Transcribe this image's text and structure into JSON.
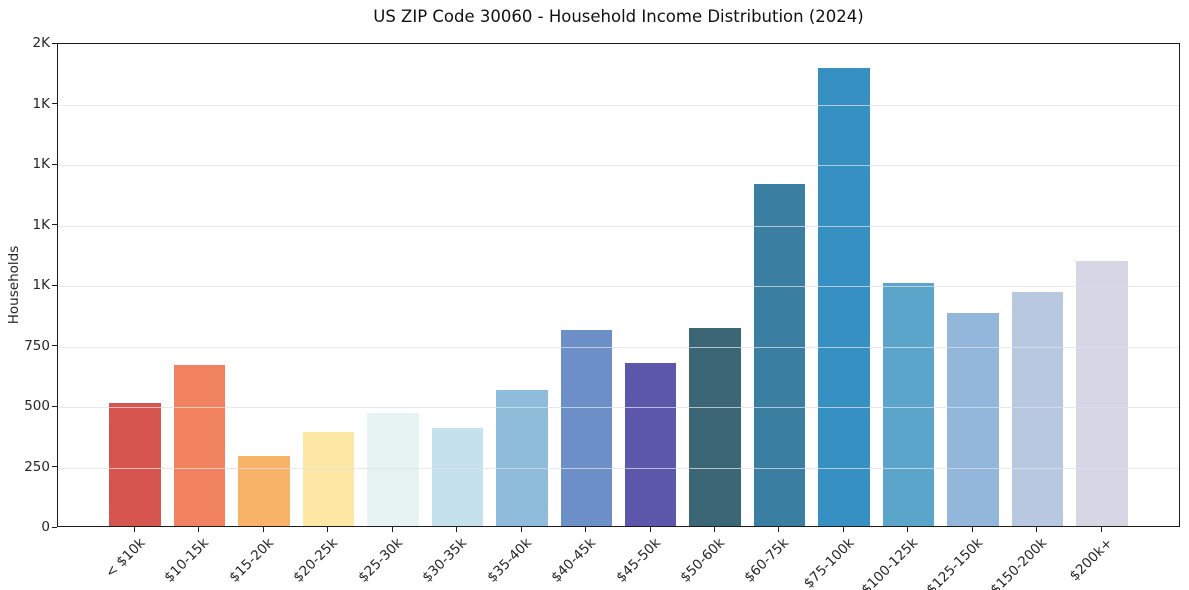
{
  "chart_data": {
    "type": "bar",
    "title": "US ZIP Code 30060 - Household Income Distribution (2024)",
    "xlabel": "",
    "ylabel": "Households",
    "categories": [
      "< $10k",
      "$10-15k",
      "$15-20k",
      "$20-25k",
      "$25-30k",
      "$30-35k",
      "$35-40k",
      "$40-45k",
      "$45-50k",
      "$50-60k",
      "$60-75k",
      "$75-100k",
      "$100-125k",
      "$125-150k",
      "$150-200k",
      "$200k+"
    ],
    "values": [
      510,
      670,
      290,
      390,
      470,
      405,
      565,
      815,
      675,
      820,
      1420,
      1900,
      1010,
      885,
      970,
      1100
    ],
    "bar_colors": [
      "#d6554f",
      "#f0825f",
      "#f9b369",
      "#fde7a4",
      "#e7f3f3",
      "#c5e1eb",
      "#90bcdc",
      "#6b8fc6",
      "#5d57ac",
      "#3a6676",
      "#3a7fa2",
      "#3790c2",
      "#5ba5cb",
      "#92b7da",
      "#b7c8e0",
      "#d5d7e5"
    ],
    "ylim": [
      0,
      2000
    ],
    "yticks": [
      {
        "value": 0,
        "label": "0"
      },
      {
        "value": 250,
        "label": "250"
      },
      {
        "value": 500,
        "label": "500"
      },
      {
        "value": 750,
        "label": "750"
      },
      {
        "value": 1000,
        "label": "1K"
      },
      {
        "value": 1250,
        "label": "1K"
      },
      {
        "value": 1500,
        "label": "1K"
      },
      {
        "value": 1750,
        "label": "1K"
      },
      {
        "value": 2000,
        "label": "2K"
      }
    ],
    "grid": "horizontal",
    "legend": "none",
    "colors": {
      "spine": "#1c1c1c",
      "grid": "#e9e9ee",
      "text": "#262626",
      "background": "#ffffff"
    }
  }
}
